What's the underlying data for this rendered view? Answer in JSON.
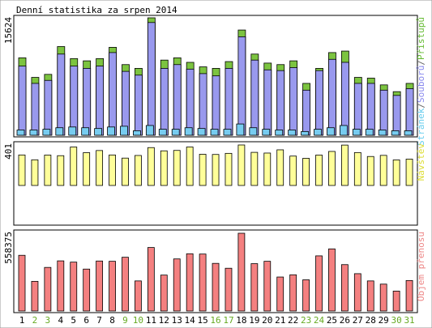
{
  "chart_data": [
    {
      "type": "bar",
      "title": "Denní statistika za srpen 2014",
      "ymax_label": "15624",
      "side_label_parts": [
        {
          "text": "Stránek",
          "color": "#66ccee"
        },
        {
          "text": "/",
          "color": "#666666"
        },
        {
          "text": "Souborů",
          "color": "#8888ee"
        },
        {
          "text": "/",
          "color": "#666666"
        },
        {
          "text": "Přístupů",
          "color": "#66bb33"
        }
      ],
      "categories": [
        "1",
        "2",
        "3",
        "4",
        "5",
        "6",
        "7",
        "8",
        "9",
        "10",
        "11",
        "12",
        "13",
        "14",
        "15",
        "16",
        "17",
        "18",
        "19",
        "20",
        "21",
        "22",
        "23",
        "24",
        "25",
        "26",
        "27",
        "28",
        "29",
        "30",
        "31"
      ],
      "weekend_days": [
        "2",
        "3",
        "9",
        "10",
        "16",
        "17",
        "23",
        "24",
        "30",
        "31"
      ],
      "series": [
        {
          "name": "Přístupů",
          "color": "#7cc440",
          "values": [
            10300,
            7700,
            8100,
            11800,
            10200,
            9900,
            10200,
            11700,
            9400,
            8900,
            15624,
            10000,
            10300,
            9700,
            9100,
            8900,
            9800,
            14000,
            10800,
            9600,
            9400,
            9900,
            6900,
            8900,
            11000,
            11200,
            7700,
            7600,
            6700,
            5800,
            6900
          ]
        },
        {
          "name": "Souborů",
          "color": "#9999ee",
          "values": [
            9200,
            6900,
            7300,
            10800,
            9200,
            8900,
            9200,
            11000,
            8500,
            8000,
            15000,
            8900,
            9400,
            8800,
            8200,
            7900,
            8900,
            13100,
            10000,
            8700,
            8600,
            9000,
            6000,
            8600,
            10100,
            9700,
            6900,
            6900,
            6000,
            5300,
            6200
          ]
        },
        {
          "name": "Stránek",
          "color": "#77ccf0",
          "values": [
            700,
            700,
            800,
            1000,
            1100,
            1000,
            900,
            1100,
            1200,
            600,
            1300,
            800,
            800,
            1000,
            900,
            800,
            800,
            1500,
            1000,
            800,
            700,
            700,
            500,
            800,
            1000,
            1300,
            800,
            800,
            700,
            600,
            600
          ]
        }
      ]
    },
    {
      "type": "bar",
      "ymax_label": "401",
      "side_label": "Návštěv",
      "side_label_color": "#dddd33",
      "categories": [
        "1",
        "2",
        "3",
        "4",
        "5",
        "6",
        "7",
        "8",
        "9",
        "10",
        "11",
        "12",
        "13",
        "14",
        "15",
        "16",
        "17",
        "18",
        "19",
        "20",
        "21",
        "22",
        "23",
        "24",
        "25",
        "26",
        "27",
        "28",
        "29",
        "30",
        "31"
      ],
      "series": [
        {
          "name": "Návštěv",
          "color": "#ffff99",
          "values": [
            302,
            254,
            301,
            295,
            381,
            325,
            346,
            302,
            271,
            297,
            375,
            343,
            347,
            381,
            309,
            307,
            318,
            401,
            328,
            321,
            353,
            291,
            269,
            301,
            337,
            400,
            326,
            287,
            298,
            253,
            261
          ]
        }
      ]
    },
    {
      "type": "bar",
      "ymax_label": "558375",
      "side_label": "Objem přenosu",
      "side_label_color": "#ee8888",
      "categories": [
        "1",
        "2",
        "3",
        "4",
        "5",
        "6",
        "7",
        "8",
        "9",
        "10",
        "11",
        "12",
        "13",
        "14",
        "15",
        "16",
        "17",
        "18",
        "19",
        "20",
        "21",
        "22",
        "23",
        "24",
        "25",
        "26",
        "27",
        "28",
        "29",
        "30",
        "31"
      ],
      "series": [
        {
          "name": "Objem přenosu",
          "color": "#f48080",
          "values": [
            400000,
            213000,
            313000,
            360000,
            351000,
            301000,
            359000,
            357000,
            386000,
            216000,
            456000,
            258000,
            374000,
            411000,
            409000,
            342000,
            307000,
            558375,
            340000,
            357000,
            244000,
            260000,
            224000,
            396000,
            446000,
            333000,
            268000,
            216000,
            193000,
            143000,
            219000
          ]
        }
      ]
    }
  ]
}
